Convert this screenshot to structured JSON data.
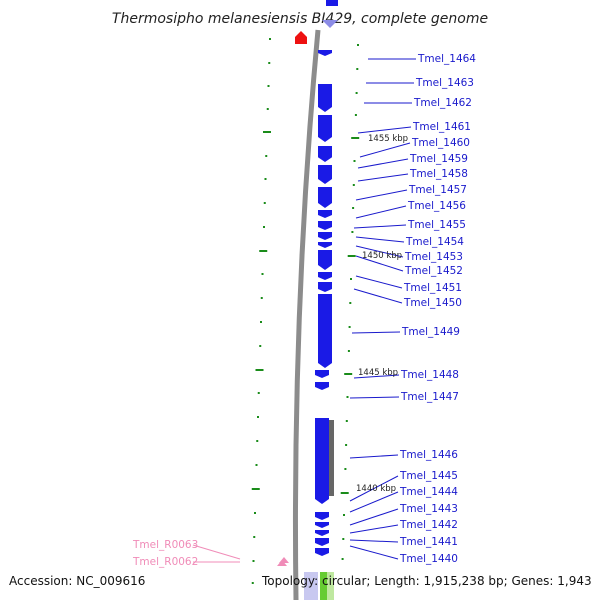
{
  "title": "Thermosipho melanesiensis BI429, complete genome",
  "accession_text": "Accession: NC_009616",
  "topology_text": "Topology: circular; Length: 1,915,238 bp; Genes: 1,943",
  "gene_labels": [
    "Tmel_1464",
    "Tmel_1463",
    "Tmel_1462",
    "Tmel_1461",
    "Tmel_1460",
    "Tmel_1459",
    "Tmel_1458",
    "Tmel_1457",
    "Tmel_1456",
    "Tmel_1455",
    "Tmel_1454",
    "Tmel_1453",
    "Tmel_1452",
    "Tmel_1451",
    "Tmel_1450",
    "Tmel_1449",
    "Tmel_1448",
    "Tmel_1447",
    "Tmel_1446",
    "Tmel_1445",
    "Tmel_1444",
    "Tmel_1443",
    "Tmel_1442",
    "Tmel_1441",
    "Tmel_1440"
  ],
  "rna_labels": [
    "Tmel_R0063",
    "Tmel_R0062"
  ],
  "tick_labels": [
    "1455 kbp",
    "1450 kbp",
    "1445 kbp",
    "1440 kbp"
  ],
  "colors": {
    "gene": "#1a1ae6",
    "gene_label": "#1a1acc",
    "rna": "#f08cb8",
    "backbone": "#8c8c8c",
    "tick": "#1a8c1a",
    "marker": "#ee1111",
    "repeat": "#666666"
  }
}
